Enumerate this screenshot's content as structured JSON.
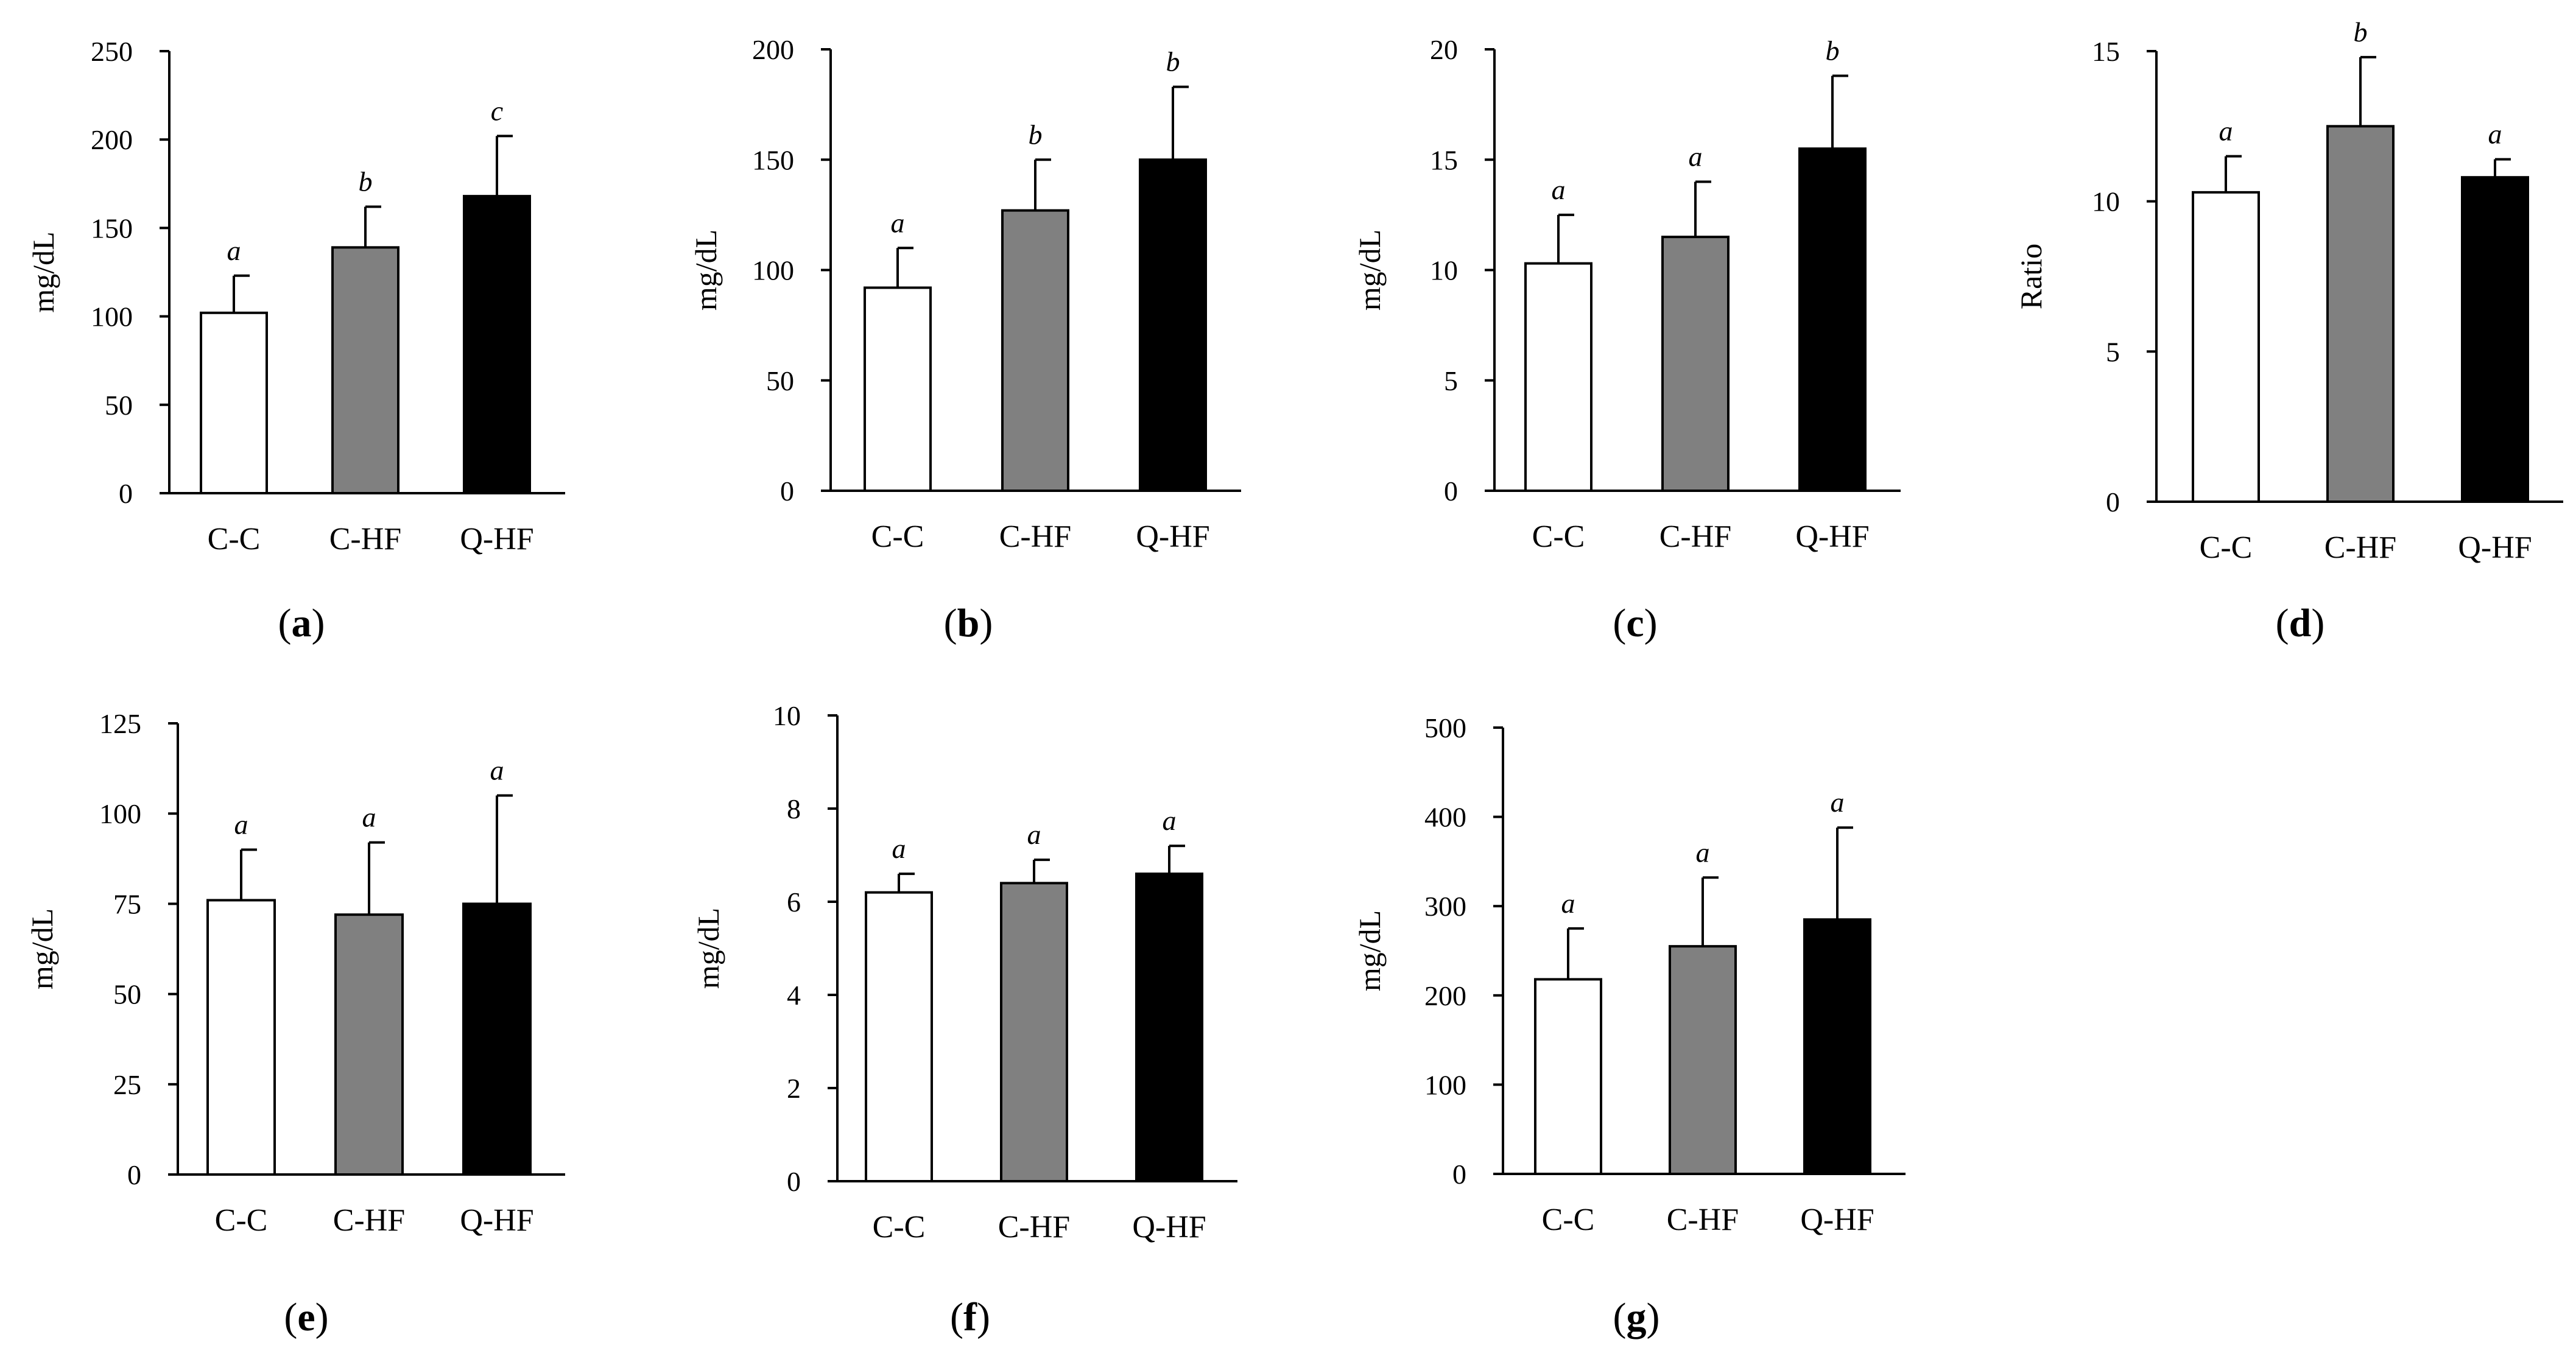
{
  "figure": {
    "colors": {
      "C-C": "#ffffff",
      "C-HF": "#808080",
      "Q-HF": "#000000",
      "axis": "#000000"
    }
  },
  "chart_data": [
    {
      "id": "a",
      "panel_label": "a",
      "type": "bar",
      "ylabel": "mg/dL",
      "ylim": [
        0,
        250
      ],
      "yticks": [
        0,
        50,
        100,
        150,
        200,
        250
      ],
      "categories": [
        "C-C",
        "C-HF",
        "Q-HF"
      ],
      "values": [
        102,
        139,
        168
      ],
      "errors": [
        21,
        23,
        34
      ],
      "significance": [
        "a",
        "b",
        "c"
      ]
    },
    {
      "id": "b",
      "panel_label": "b",
      "type": "bar",
      "ylabel": "mg/dL",
      "ylim": [
        0,
        200
      ],
      "yticks": [
        0,
        50,
        100,
        150,
        200
      ],
      "categories": [
        "C-C",
        "C-HF",
        "Q-HF"
      ],
      "values": [
        92,
        127,
        150
      ],
      "errors": [
        18,
        23,
        33
      ],
      "significance": [
        "a",
        "b",
        "b"
      ]
    },
    {
      "id": "c",
      "panel_label": "c",
      "type": "bar",
      "ylabel": "mg/dL",
      "ylim": [
        0,
        20
      ],
      "yticks": [
        0,
        5,
        10,
        15,
        20
      ],
      "categories": [
        "C-C",
        "C-HF",
        "Q-HF"
      ],
      "values": [
        10.3,
        11.5,
        15.5
      ],
      "errors": [
        2.2,
        2.5,
        3.3
      ],
      "significance": [
        "a",
        "a",
        "b"
      ]
    },
    {
      "id": "d",
      "panel_label": "d",
      "type": "bar",
      "ylabel": "Ratio",
      "ylim": [
        0,
        15
      ],
      "yticks": [
        0,
        5,
        10,
        15
      ],
      "categories": [
        "C-C",
        "C-HF",
        "Q-HF"
      ],
      "values": [
        10.3,
        12.5,
        10.8
      ],
      "errors": [
        1.2,
        2.3,
        0.6
      ],
      "significance": [
        "a",
        "b",
        "a"
      ]
    },
    {
      "id": "e",
      "panel_label": "e",
      "type": "bar",
      "ylabel": "mg/dL",
      "ylim": [
        0,
        125
      ],
      "yticks": [
        0,
        25,
        50,
        75,
        100,
        125
      ],
      "categories": [
        "C-C",
        "C-HF",
        "Q-HF"
      ],
      "values": [
        76,
        72,
        75
      ],
      "errors": [
        14,
        20,
        30
      ],
      "significance": [
        "a",
        "a",
        "a"
      ]
    },
    {
      "id": "f",
      "panel_label": "f",
      "type": "bar",
      "ylabel": "mg/dL",
      "ylim": [
        0,
        10
      ],
      "yticks": [
        0,
        2,
        4,
        6,
        8,
        10
      ],
      "categories": [
        "C-C",
        "C-HF",
        "Q-HF"
      ],
      "values": [
        6.2,
        6.4,
        6.6
      ],
      "errors": [
        0.4,
        0.5,
        0.6
      ],
      "significance": [
        "a",
        "a",
        "a"
      ]
    },
    {
      "id": "g",
      "panel_label": "g",
      "type": "bar",
      "ylabel": "mg/dL",
      "ylim": [
        0,
        500
      ],
      "yticks": [
        0,
        100,
        200,
        300,
        400,
        500
      ],
      "categories": [
        "C-C",
        "C-HF",
        "Q-HF"
      ],
      "values": [
        218,
        255,
        285
      ],
      "errors": [
        57,
        77,
        103
      ],
      "significance": [
        "a",
        "a",
        "a"
      ]
    }
  ]
}
